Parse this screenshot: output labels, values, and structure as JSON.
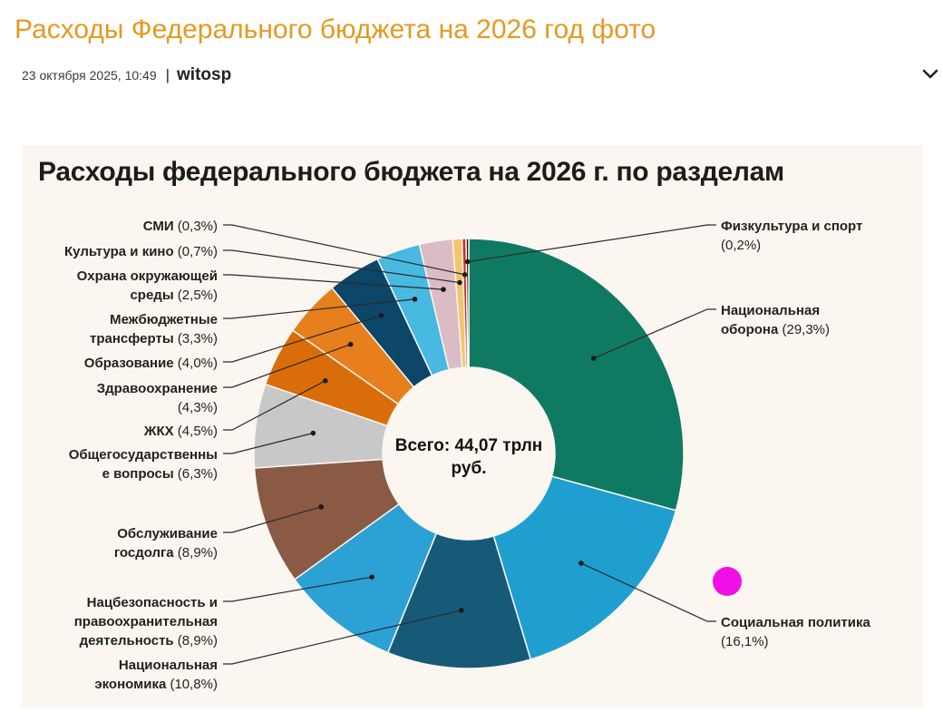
{
  "post": {
    "title": "Расходы Федерального бюджета на 2026 год фото",
    "date": "23 октября 2025, 10:49",
    "separator": "|",
    "author": "witosp"
  },
  "icons": {
    "expand": "chevron-down-icon",
    "marker": "magenta-dot"
  },
  "chart_data": {
    "type": "pie",
    "donut": true,
    "title": "Расходы федерального бюджета на 2026 г. по разделам",
    "center_label": [
      "Всего: 44,07 трлн",
      "руб."
    ],
    "unit": "%",
    "slices": [
      {
        "name": "Национальная оборона",
        "value": 29.3,
        "label": [
          "Национальная",
          "оборона (29,3%)"
        ],
        "color": "#0f7a61"
      },
      {
        "name": "Социальная политика",
        "value": 16.1,
        "label": [
          "Социальная политика",
          "(16,1%)"
        ],
        "color": "#1f9fd0"
      },
      {
        "name": "Национальная экономика",
        "value": 10.8,
        "label": [
          "Национальная",
          "экономика (10,8%)"
        ],
        "color": "#175a78"
      },
      {
        "name": "Нацбезопасность и правоохранительная деятельность",
        "value": 8.9,
        "label": [
          "Нацбезопасность и",
          "правоохранительная",
          "деятельность (8,9%)"
        ],
        "color": "#2ca1d6"
      },
      {
        "name": "Обслуживание госдолга",
        "value": 8.9,
        "label": [
          "Обслуживание",
          "госдолга (8,9%)"
        ],
        "color": "#8a5a45"
      },
      {
        "name": "Общегосударственные вопросы",
        "value": 6.3,
        "label": [
          "Общегосударственны",
          "е вопросы (6,3%)"
        ],
        "color": "#c8c8c8"
      },
      {
        "name": "ЖКХ",
        "value": 4.5,
        "label": [
          "ЖКХ (4,5%)"
        ],
        "color": "#d96d0a"
      },
      {
        "name": "Здравоохранение",
        "value": 4.3,
        "label": [
          "Здравоохранение",
          "(4,3%)"
        ],
        "color": "#e77f1d"
      },
      {
        "name": "Образование",
        "value": 4.0,
        "label": [
          "Образование (4,0%)"
        ],
        "color": "#0c4668"
      },
      {
        "name": "Межбюджетные трансферты",
        "value": 3.3,
        "label": [
          "Межбюджетные",
          "трансферты (3,3%)"
        ],
        "color": "#48b9e0"
      },
      {
        "name": "Охрана окружающей среды",
        "value": 2.5,
        "label": [
          "Охрана окружающей",
          "среды (2,5%)"
        ],
        "color": "#dcbcc4"
      },
      {
        "name": "Культура и кино",
        "value": 0.7,
        "label": [
          "Культура и кино (0,7%)"
        ],
        "color": "#f5c46e"
      },
      {
        "name": "СМИ",
        "value": 0.3,
        "label": [
          "СМИ (0,3%)"
        ],
        "color": "#c8322a"
      },
      {
        "name": "Физкультура и спорт",
        "value": 0.2,
        "label": [
          "Физкультура и спорт",
          "(0,2%)"
        ],
        "color": "#1a1a1a"
      }
    ]
  }
}
